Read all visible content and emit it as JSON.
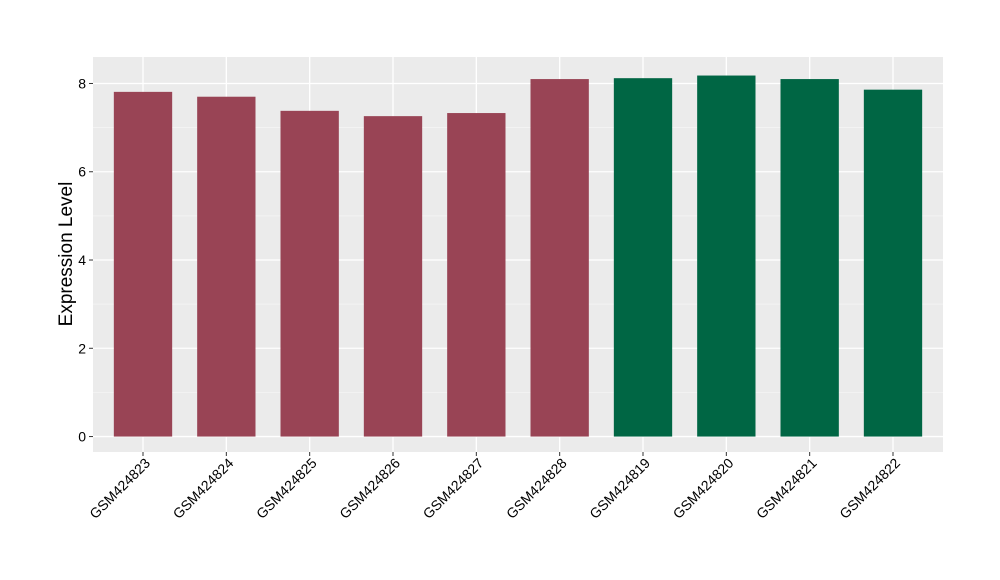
{
  "chart_data": {
    "type": "bar",
    "title": "",
    "xlabel": "",
    "ylabel": "Expression Level",
    "ylim": [
      -0.35,
      8.6
    ],
    "yticks": [
      0,
      2,
      4,
      6,
      8
    ],
    "grid": true,
    "background": "#EBEBEB",
    "categories": [
      "GSM424823",
      "GSM424824",
      "GSM424825",
      "GSM424826",
      "GSM424827",
      "GSM424828",
      "GSM424819",
      "GSM424820",
      "GSM424821",
      "GSM424822"
    ],
    "values": [
      7.81,
      7.7,
      7.38,
      7.26,
      7.33,
      8.1,
      8.12,
      8.18,
      8.1,
      7.86
    ],
    "colors": [
      "#994455",
      "#994455",
      "#994455",
      "#994455",
      "#994455",
      "#994455",
      "#006644",
      "#006644",
      "#006644",
      "#006644"
    ]
  }
}
